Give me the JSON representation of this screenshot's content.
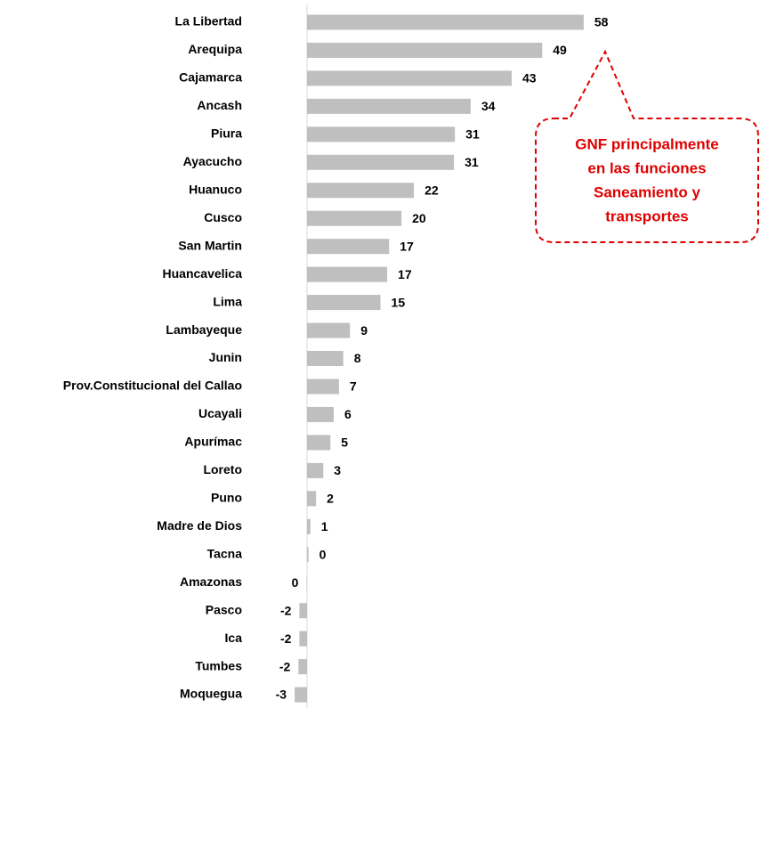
{
  "chart_data": {
    "type": "hbar",
    "categories": [
      "La Libertad",
      "Arequipa",
      "Cajamarca",
      "Ancash",
      "Piura",
      "Ayacucho",
      "Huanuco",
      "Cusco",
      "San Martin",
      "Huancavelica",
      "Lima",
      "Lambayeque",
      "Junin",
      "Prov.Constitucional del Callao",
      "Ucayali",
      "Apurímac",
      "Loreto",
      "Puno",
      "Madre de Dios",
      "Tacna",
      "Amazonas",
      "Pasco",
      "Ica",
      "Tumbes",
      "Moquegua"
    ],
    "values": [
      58.0,
      49.3,
      42.9,
      34.3,
      31.0,
      30.8,
      22.4,
      19.8,
      17.2,
      16.8,
      15.4,
      9.0,
      7.6,
      6.7,
      5.6,
      4.9,
      3.4,
      1.9,
      0.7,
      0.3,
      -0.1,
      -1.6,
      -1.6,
      -1.8,
      -2.6
    ],
    "value_labels": [
      "58",
      "49",
      "43",
      "34",
      "31",
      "31",
      "22",
      "20",
      "17",
      "17",
      "15",
      "9",
      "8",
      "7",
      "6",
      "5",
      "3",
      "2",
      "1",
      "0",
      "0",
      "-2",
      "-2",
      "-2",
      "-3"
    ],
    "color": "#bfbfbf",
    "xlim": [
      -10,
      70
    ],
    "annotation": [
      "GNF principalmente",
      "en las funciones",
      "Saneamiento y",
      "transportes"
    ],
    "annotation_color": "#e00000"
  }
}
